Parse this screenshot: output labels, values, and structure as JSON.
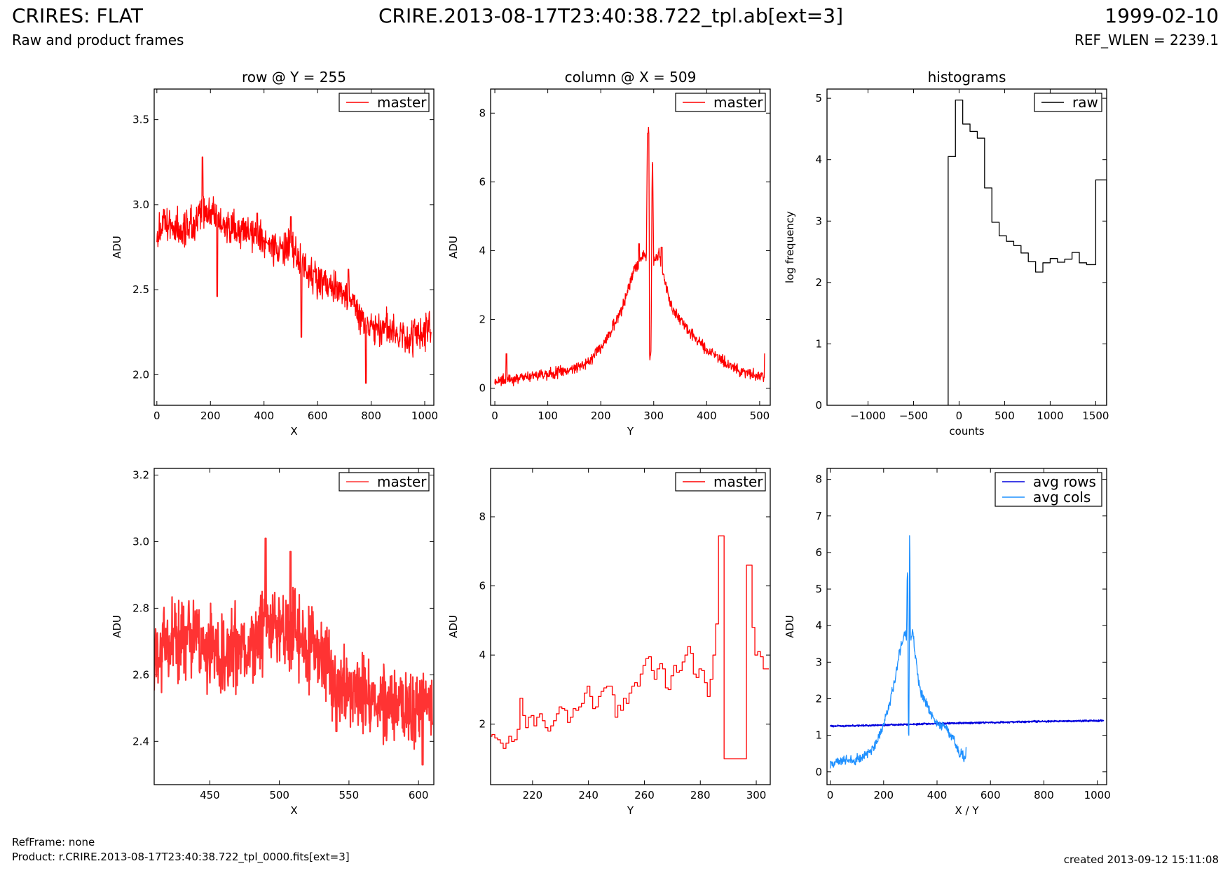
{
  "header": {
    "title": "CRIRES: FLAT",
    "subtitle": "Raw and product frames",
    "file": "CRIRE.2013-08-17T23:40:38.722_tpl.ab[ext=3]",
    "date": "1999-02-10",
    "ref_wlen": "REF_WLEN = 2239.1"
  },
  "footer": {
    "ref_frame": "RefFrame: none",
    "product": "Product: r.CRIRE.2013-08-17T23:40:38.722_tpl_0000.fits[ext=3]",
    "created": "created 2013-09-12 15:11:08"
  },
  "colors": {
    "master": "#ff0000",
    "master_zoom": "#ff3333",
    "raw": "#000000",
    "avg_rows": "#0000dd",
    "avg_cols": "#1e90ff"
  },
  "chart_data": [
    {
      "id": "row-plot",
      "type": "line",
      "title": "row @ Y = 255",
      "xlabel": "X",
      "ylabel": "ADU",
      "xlim": [
        -10,
        1034
      ],
      "ylim": [
        1.82,
        3.68
      ],
      "xticks": [
        0,
        200,
        400,
        600,
        800,
        1000
      ],
      "yticks": [
        2.0,
        2.5,
        3.0,
        3.5
      ],
      "ytick_labels": [
        "2.0",
        "2.5",
        "3.0",
        "3.5"
      ],
      "legend": "top-right",
      "series": [
        {
          "name": "master",
          "color": "#ff0000",
          "x": [
            0,
            50,
            100,
            150,
            170,
            200,
            250,
            300,
            350,
            400,
            450,
            500,
            550,
            600,
            650,
            700,
            750,
            800,
            850,
            900,
            950,
            1000,
            1024
          ],
          "y": [
            2.85,
            2.88,
            2.86,
            2.9,
            2.98,
            2.95,
            2.87,
            2.84,
            2.82,
            2.8,
            2.74,
            2.74,
            2.64,
            2.56,
            2.52,
            2.48,
            2.35,
            2.27,
            2.28,
            2.22,
            2.2,
            2.26,
            2.28
          ],
          "noise": 0.1,
          "spikes": [
            [
              170,
              3.28
            ],
            [
              225,
              2.46
            ],
            [
              375,
              2.95
            ],
            [
              500,
              2.93
            ],
            [
              540,
              2.22
            ],
            [
              780,
              1.95
            ],
            [
              715,
              2.62
            ]
          ]
        }
      ]
    },
    {
      "id": "col-plot",
      "type": "line",
      "title": "column @ X = 509",
      "xlabel": "Y",
      "ylabel": "ADU",
      "xlim": [
        -8,
        520
      ],
      "ylim": [
        -0.5,
        8.7
      ],
      "xticks": [
        0,
        100,
        200,
        300,
        400,
        500
      ],
      "yticks": [
        0,
        2,
        4,
        6,
        8
      ],
      "ytick_labels": [
        "0",
        "2",
        "4",
        "6",
        "8"
      ],
      "legend": "top-right",
      "series": [
        {
          "name": "master",
          "color": "#ff0000",
          "x": [
            0,
            20,
            50,
            100,
            150,
            180,
            200,
            220,
            240,
            260,
            270,
            280,
            286,
            288,
            291,
            292,
            293,
            295,
            297,
            298,
            300,
            310,
            320,
            330,
            340,
            360,
            400,
            450,
            480,
            510
          ],
          "y": [
            0.2,
            0.25,
            0.3,
            0.4,
            0.55,
            0.8,
            1.2,
            1.7,
            2.3,
            3.3,
            3.6,
            3.9,
            3.7,
            7.45,
            7.45,
            1.0,
            1.0,
            1.0,
            6.6,
            6.6,
            3.7,
            3.9,
            3.2,
            2.5,
            2.2,
            1.8,
            1.1,
            0.6,
            0.4,
            0.35
          ],
          "noise": 0.15,
          "spikes": [
            [
              22,
              1.0
            ],
            [
              510,
              1.0
            ],
            [
              272,
              4.2
            ],
            [
              315,
              4.1
            ]
          ]
        }
      ]
    },
    {
      "id": "hist-plot",
      "type": "step",
      "title": "histograms",
      "xlabel": "counts",
      "ylabel": "log frequency",
      "xlim": [
        -1450,
        1620
      ],
      "ylim": [
        0,
        5.15
      ],
      "xticks": [
        -1000,
        -500,
        0,
        500,
        1000,
        1500
      ],
      "yticks": [
        0,
        1,
        2,
        3,
        4,
        5
      ],
      "xtick_labels": [
        "−1000",
        "−500",
        "0",
        "500",
        "1000",
        "1500"
      ],
      "ytick_labels": [
        "0",
        "1",
        "2",
        "3",
        "4",
        "5"
      ],
      "legend": "top-right",
      "series": [
        {
          "name": "raw",
          "color": "#000000",
          "edges": [
            -120,
            -40,
            40,
            120,
            200,
            280,
            360,
            440,
            520,
            600,
            680,
            760,
            840,
            920,
            1000,
            1080,
            1160,
            1240,
            1320,
            1400,
            1500,
            1620
          ],
          "counts": [
            4.05,
            4.97,
            4.58,
            4.46,
            4.35,
            3.54,
            2.98,
            2.76,
            2.67,
            2.6,
            2.48,
            2.34,
            2.17,
            2.32,
            2.39,
            2.33,
            2.38,
            2.49,
            2.32,
            2.29,
            3.67
          ]
        }
      ]
    },
    {
      "id": "row-zoom",
      "type": "line",
      "title": "",
      "xlabel": "X",
      "ylabel": "ADU",
      "xlim": [
        410,
        611
      ],
      "ylim": [
        2.27,
        3.22
      ],
      "xticks": [
        450,
        500,
        550,
        600
      ],
      "yticks": [
        2.4,
        2.6,
        2.8,
        3.0,
        3.2
      ],
      "ytick_labels": [
        "2.4",
        "2.6",
        "2.8",
        "3.0",
        "3.2"
      ],
      "legend": "top-right",
      "series": [
        {
          "name": "master",
          "color": "#ff3333",
          "width": 2.2,
          "x": [
            410,
            420,
            430,
            440,
            450,
            460,
            470,
            480,
            490,
            500,
            510,
            520,
            530,
            540,
            550,
            560,
            570,
            580,
            590,
            600,
            610
          ],
          "y": [
            2.66,
            2.68,
            2.7,
            2.72,
            2.68,
            2.66,
            2.68,
            2.7,
            2.74,
            2.74,
            2.72,
            2.68,
            2.66,
            2.58,
            2.56,
            2.54,
            2.54,
            2.5,
            2.48,
            2.5,
            2.52
          ],
          "noise": 0.11,
          "spikes": [
            [
              490,
              3.01
            ],
            [
              508,
              2.97
            ],
            [
              541,
              2.43
            ],
            [
              603,
              2.33
            ]
          ]
        }
      ]
    },
    {
      "id": "col-zoom",
      "type": "step",
      "title": "",
      "xlabel": "Y",
      "ylabel": "ADU",
      "xlim": [
        205,
        305
      ],
      "ylim": [
        0.25,
        9.4
      ],
      "xticks": [
        220,
        240,
        260,
        280,
        300
      ],
      "yticks": [
        2,
        4,
        6,
        8
      ],
      "ytick_labels": [
        "2",
        "4",
        "6",
        "8"
      ],
      "legend": "top-right",
      "series": [
        {
          "name": "master",
          "color": "#ff0000",
          "x": [
            205,
            206,
            207,
            208,
            209,
            210,
            211,
            212,
            213,
            214,
            215,
            216,
            217,
            218,
            219,
            220,
            221,
            222,
            223,
            224,
            225,
            226,
            227,
            228,
            229,
            230,
            231,
            232,
            233,
            234,
            235,
            236,
            237,
            238,
            239,
            240,
            241,
            242,
            243,
            244,
            245,
            246,
            247,
            248,
            249,
            250,
            251,
            252,
            253,
            254,
            255,
            256,
            257,
            258,
            259,
            260,
            261,
            262,
            263,
            264,
            265,
            266,
            267,
            268,
            269,
            270,
            271,
            272,
            273,
            274,
            275,
            276,
            277,
            278,
            279,
            280,
            281,
            282,
            283,
            284,
            285,
            286,
            287,
            288,
            289,
            290,
            291,
            292,
            293,
            294,
            295,
            296,
            297,
            298,
            299,
            300,
            301,
            302,
            303,
            304
          ],
          "y": [
            1.65,
            1.7,
            1.6,
            1.55,
            1.45,
            1.3,
            1.45,
            1.65,
            1.5,
            1.55,
            1.85,
            2.75,
            2.25,
            1.9,
            2.2,
            2.25,
            1.95,
            2.2,
            2.3,
            2.1,
            1.9,
            1.8,
            1.95,
            2.1,
            2.3,
            2.5,
            2.45,
            2.4,
            2.05,
            2.2,
            2.45,
            2.4,
            2.5,
            2.6,
            2.9,
            3.1,
            2.8,
            2.45,
            2.5,
            2.8,
            2.95,
            3.05,
            3.1,
            3.1,
            2.85,
            2.2,
            2.55,
            2.4,
            2.75,
            2.6,
            2.9,
            3.1,
            3.2,
            3.1,
            3.45,
            3.7,
            3.9,
            3.95,
            3.55,
            3.3,
            3.6,
            3.75,
            3.6,
            3.05,
            3.0,
            3.4,
            3.7,
            3.5,
            3.55,
            3.8,
            4.0,
            4.25,
            4.05,
            3.45,
            3.35,
            3.6,
            3.55,
            3.2,
            2.8,
            3.3,
            4.0,
            4.9,
            7.45,
            7.45,
            1.0,
            1.0,
            1.0,
            1.0,
            1.0,
            1.0,
            1.0,
            1.0,
            6.6,
            6.6,
            4.8,
            4.0,
            4.1,
            3.95,
            3.6,
            3.6
          ]
        }
      ]
    },
    {
      "id": "avg-plot",
      "type": "line",
      "title": "",
      "xlabel": "X / Y",
      "ylabel": "ADU",
      "xlim": [
        -12,
        1035
      ],
      "ylim": [
        -0.35,
        8.3
      ],
      "xticks": [
        0,
        200,
        400,
        600,
        800,
        1000
      ],
      "yticks": [
        0,
        1,
        2,
        3,
        4,
        5,
        6,
        7,
        8
      ],
      "ytick_labels": [
        "0",
        "1",
        "2",
        "3",
        "4",
        "5",
        "6",
        "7",
        "8"
      ],
      "legend": "top-right",
      "series": [
        {
          "name": "avg rows",
          "color": "#0000dd",
          "width": 1.8,
          "x": [
            0,
            200,
            400,
            600,
            800,
            1024
          ],
          "y": [
            1.25,
            1.28,
            1.32,
            1.35,
            1.38,
            1.4
          ],
          "noise": 0.02
        },
        {
          "name": "avg cols",
          "color": "#1e90ff",
          "x": [
            0,
            50,
            100,
            150,
            180,
            200,
            220,
            240,
            260,
            270,
            280,
            286,
            288,
            291,
            292,
            295,
            297,
            298,
            300,
            310,
            320,
            330,
            340,
            360,
            400,
            430,
            460,
            480,
            510
          ],
          "y": [
            0.25,
            0.27,
            0.35,
            0.55,
            0.9,
            1.3,
            1.8,
            2.4,
            3.3,
            3.6,
            3.8,
            3.6,
            5.3,
            5.3,
            1.0,
            1.0,
            6.45,
            6.45,
            3.6,
            3.8,
            3.1,
            2.5,
            2.2,
            1.85,
            1.3,
            1.25,
            0.9,
            0.55,
            0.4
          ],
          "noise": 0.13,
          "spikes": [
            [
              510,
              0.67
            ]
          ]
        }
      ]
    }
  ]
}
